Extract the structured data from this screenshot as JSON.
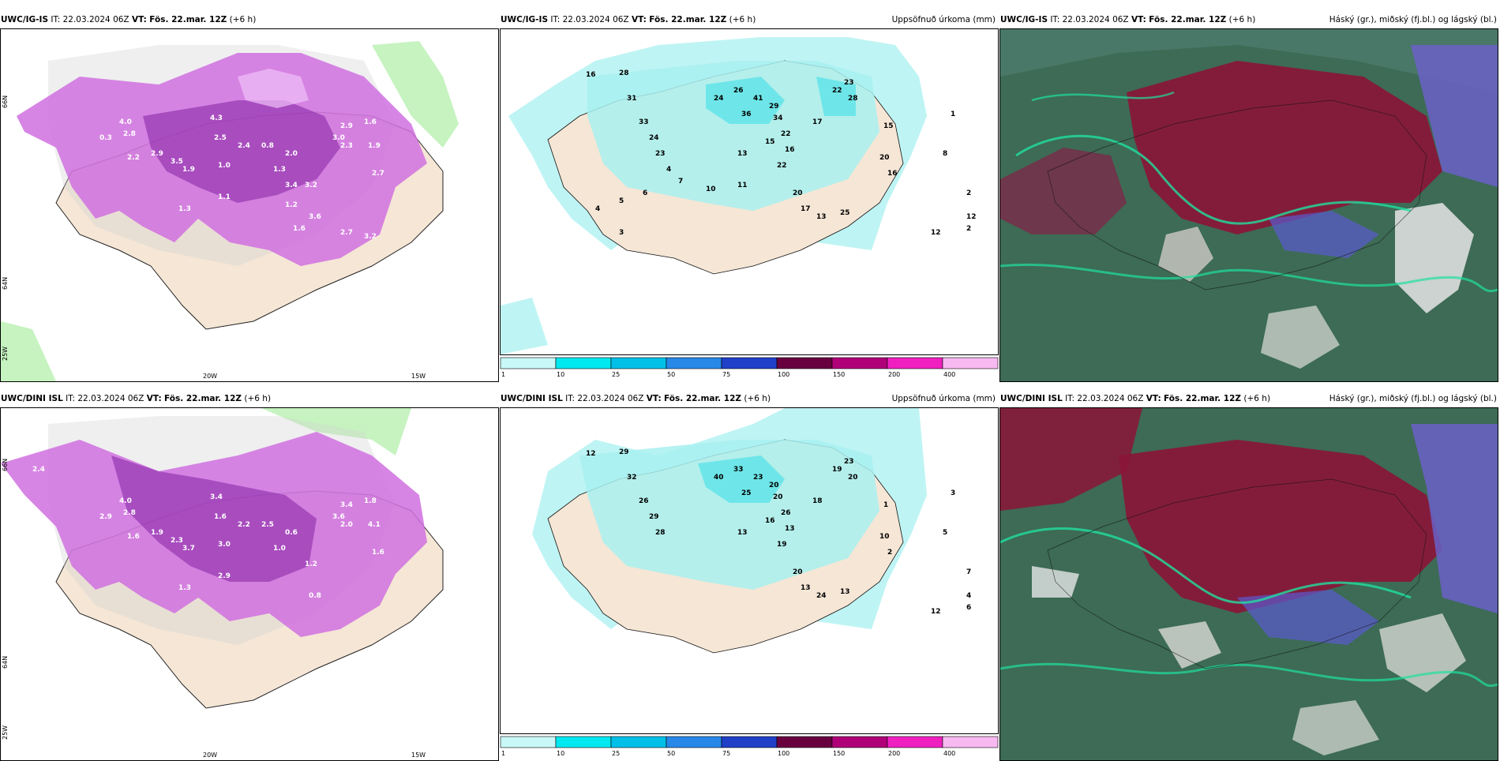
{
  "row1": {
    "panels": [
      {
        "model": "UWC/IG-IS",
        "it_label": "IT:",
        "it": "22.03.2024 06Z",
        "vt_label": "VT:",
        "vt": "Fös. 22.mar. 12Z",
        "lead": "(+6 h)",
        "right": ""
      },
      {
        "model": "UWC/IG-IS",
        "it_label": "IT:",
        "it": "22.03.2024 06Z",
        "vt_label": "VT:",
        "vt": "Fös. 22.mar. 12Z",
        "lead": "(+6 h)",
        "right": "Uppsöfnuð úrkoma (mm)"
      },
      {
        "model": "UWC/IG-IS",
        "it_label": "IT:",
        "it": "22.03.2024 06Z",
        "vt_label": "VT:",
        "vt": "Fös. 22.mar. 12Z",
        "lead": "(+6 h)",
        "right": "Háský (gr.), miðský (fj.bl.) og lágský (bl.)"
      }
    ],
    "precip_values": [
      "16",
      "28",
      "31",
      "33",
      "24",
      "23",
      "24",
      "26",
      "36",
      "41",
      "29",
      "34",
      "22",
      "16",
      "17",
      "22",
      "23",
      "28",
      "13",
      "15",
      "22",
      "20",
      "17",
      "13",
      "25",
      "20",
      "15",
      "16",
      "1",
      "8",
      "2",
      "12",
      "2",
      "12",
      "3",
      "6",
      "7",
      "10",
      "11",
      "4",
      "5",
      "4"
    ],
    "wind_values": [
      "0.5",
      "0.3",
      "4.0",
      "2.8",
      "2.2",
      "2.9",
      "3.5",
      "1.3",
      "1.1",
      "1.9",
      "4.3",
      "2.5",
      "1.0",
      "2.4",
      "0.8",
      "1.3",
      "2.0",
      "3.2",
      "3.0",
      "2.9",
      "2.3",
      "1.6",
      "1.9",
      "2.7",
      "3.6",
      "2.7",
      "3.2",
      "1.2",
      "1.6",
      "3.4"
    ]
  },
  "row2": {
    "panels": [
      {
        "model": "UWC/DINI ISL",
        "it_label": "IT:",
        "it": "22.03.2024 06Z",
        "vt_label": "VT:",
        "vt": "Fös. 22.mar. 12Z",
        "lead": "(+6 h)",
        "right": ""
      },
      {
        "model": "UWC/DINI ISL",
        "it_label": "IT:",
        "it": "22.03.2024 06Z",
        "vt_label": "VT:",
        "vt": "Fös. 22.mar. 12Z",
        "lead": "(+6 h)",
        "right": "Uppsöfnuð úrkoma (mm)"
      },
      {
        "model": "UWC/DINI ISL",
        "it_label": "IT:",
        "it": "22.03.2024 06Z",
        "vt_label": "VT:",
        "vt": "Fös. 22.mar. 12Z",
        "lead": "(+6 h)",
        "right": "Háský (gr.), miðský (fj.bl.) og lágský (bl.)"
      }
    ],
    "precip_values": [
      "12",
      "29",
      "32",
      "26",
      "29",
      "28",
      "40",
      "33",
      "25",
      "23",
      "20",
      "20",
      "26",
      "13",
      "18",
      "19",
      "23",
      "20",
      "13",
      "16",
      "19",
      "20",
      "13",
      "24",
      "13",
      "10",
      "1",
      "2",
      "3",
      "5",
      "7",
      "4",
      "6",
      "12"
    ],
    "wind_values": [
      "2.4",
      "2.9",
      "4.0",
      "2.8",
      "1.6",
      "1.9",
      "2.3",
      "1.3",
      "2.9",
      "3.7",
      "3.4",
      "1.6",
      "3.0",
      "2.2",
      "2.5",
      "1.0",
      "0.6",
      "1.2",
      "3.6",
      "3.4",
      "2.0",
      "1.8",
      "4.1",
      "1.6",
      "0.8"
    ]
  },
  "axes": {
    "lon_labels": [
      "20W",
      "15W"
    ],
    "lat_labels": [
      "66N",
      "64N"
    ],
    "corner_label": "25W"
  },
  "legend": {
    "ticks": [
      "1",
      "10",
      "25",
      "50",
      "75",
      "100",
      "150",
      "200",
      "400"
    ],
    "colors": [
      "#c8f8f8",
      "#00e8f0",
      "#00c0e8",
      "#2888e8",
      "#2040c8",
      "#680040",
      "#b00078",
      "#f020c0",
      "#f8b8f0"
    ]
  }
}
